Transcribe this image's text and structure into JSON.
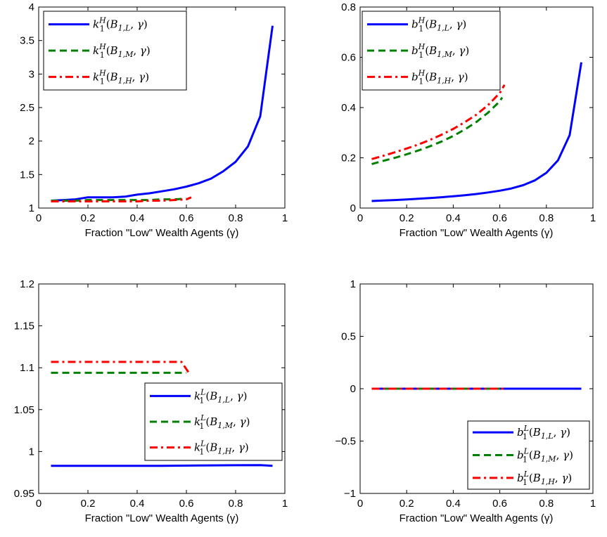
{
  "colors": {
    "blue": "#0000ff",
    "green": "#008000",
    "red": "#ff0000",
    "axis": "#000000",
    "background": "#ffffff"
  },
  "chart_data": [
    {
      "id": "panel-k1H",
      "type": "line",
      "xlabel": "Fraction \"Low\" Wealth Agents (γ)",
      "xlim": [
        0,
        1
      ],
      "ylim": [
        1,
        4
      ],
      "xticks": [
        0,
        0.2,
        0.4,
        0.6,
        0.8,
        1
      ],
      "yticks": [
        1,
        1.5,
        2,
        2.5,
        3,
        3.5,
        4
      ],
      "xtick_labels": [
        "0",
        "0.2",
        "0.4",
        "0.6",
        "0.8",
        "1"
      ],
      "ytick_labels": [
        "1",
        "1.5",
        "2",
        "2.5",
        "3",
        "3.5",
        "4"
      ],
      "grid": false,
      "legend": "top-left",
      "series": [
        {
          "name": "k_1^H(B_{1,L}, γ)",
          "label": {
            "base": "k",
            "sub": "1",
            "sup": "H",
            "arg": "B",
            "argsub": "1,L"
          },
          "style": "solid",
          "color": "#0000ff",
          "x": [
            0.05,
            0.1,
            0.15,
            0.2,
            0.25,
            0.3,
            0.35,
            0.4,
            0.45,
            0.5,
            0.55,
            0.6,
            0.65,
            0.7,
            0.75,
            0.8,
            0.85,
            0.9,
            0.95
          ],
          "y": [
            1.11,
            1.12,
            1.13,
            1.16,
            1.16,
            1.16,
            1.17,
            1.2,
            1.22,
            1.25,
            1.28,
            1.32,
            1.37,
            1.44,
            1.55,
            1.69,
            1.92,
            2.37,
            3.72
          ]
        },
        {
          "name": "k_1^H(B_{1,M}, γ)",
          "label": {
            "base": "k",
            "sub": "1",
            "sup": "H",
            "arg": "B",
            "argsub": "1,M"
          },
          "style": "dashed",
          "color": "#008000",
          "x": [
            0.05,
            0.1,
            0.15,
            0.2,
            0.25,
            0.3,
            0.35,
            0.4,
            0.45,
            0.5,
            0.55,
            0.6
          ],
          "y": [
            1.11,
            1.11,
            1.11,
            1.12,
            1.12,
            1.12,
            1.12,
            1.12,
            1.12,
            1.13,
            1.13,
            1.14
          ]
        },
        {
          "name": "k_1^H(B_{1,H}, γ)",
          "label": {
            "base": "k",
            "sub": "1",
            "sup": "H",
            "arg": "B",
            "argsub": "1,H"
          },
          "style": "dashdot",
          "color": "#ff0000",
          "x": [
            0.05,
            0.1,
            0.15,
            0.2,
            0.25,
            0.3,
            0.35,
            0.4,
            0.45,
            0.5,
            0.55,
            0.6,
            0.62
          ],
          "y": [
            1.1,
            1.1,
            1.1,
            1.1,
            1.1,
            1.1,
            1.1,
            1.1,
            1.11,
            1.11,
            1.12,
            1.13,
            1.16
          ]
        }
      ]
    },
    {
      "id": "panel-b1H",
      "type": "line",
      "xlabel": "Fraction \"Low\" Wealth Agents (γ)",
      "xlim": [
        0,
        1
      ],
      "ylim": [
        0,
        0.8
      ],
      "xticks": [
        0,
        0.2,
        0.4,
        0.6,
        0.8,
        1
      ],
      "yticks": [
        0,
        0.2,
        0.4,
        0.6,
        0.8
      ],
      "xtick_labels": [
        "0",
        "0.2",
        "0.4",
        "0.6",
        "0.8",
        "1"
      ],
      "ytick_labels": [
        "0",
        "0.2",
        "0.4",
        "0.6",
        "0.8"
      ],
      "grid": false,
      "legend": "top-left",
      "series": [
        {
          "name": "b_1^H(B_{1,L}, γ)",
          "label": {
            "base": "b",
            "sub": "1",
            "sup": "H",
            "arg": "B",
            "argsub": "1,L"
          },
          "style": "solid",
          "color": "#0000ff",
          "x": [
            0.05,
            0.1,
            0.15,
            0.2,
            0.25,
            0.3,
            0.35,
            0.4,
            0.45,
            0.5,
            0.55,
            0.6,
            0.65,
            0.7,
            0.75,
            0.8,
            0.85,
            0.9,
            0.95
          ],
          "y": [
            0.028,
            0.03,
            0.032,
            0.034,
            0.037,
            0.04,
            0.043,
            0.047,
            0.051,
            0.056,
            0.062,
            0.069,
            0.078,
            0.091,
            0.11,
            0.14,
            0.19,
            0.29,
            0.58
          ]
        },
        {
          "name": "b_1^H(B_{1,M}, γ)",
          "label": {
            "base": "b",
            "sub": "1",
            "sup": "H",
            "arg": "B",
            "argsub": "1,M"
          },
          "style": "dashed",
          "color": "#008000",
          "x": [
            0.05,
            0.1,
            0.15,
            0.2,
            0.25,
            0.3,
            0.35,
            0.4,
            0.45,
            0.5,
            0.55,
            0.6,
            0.61
          ],
          "y": [
            0.175,
            0.188,
            0.2,
            0.214,
            0.229,
            0.246,
            0.265,
            0.287,
            0.313,
            0.343,
            0.38,
            0.425,
            0.44
          ]
        },
        {
          "name": "b_1^H(B_{1,H}, γ)",
          "label": {
            "base": "b",
            "sub": "1",
            "sup": "H",
            "arg": "B",
            "argsub": "1,H"
          },
          "style": "dashdot",
          "color": "#ff0000",
          "x": [
            0.05,
            0.1,
            0.15,
            0.2,
            0.25,
            0.3,
            0.35,
            0.4,
            0.45,
            0.5,
            0.55,
            0.6,
            0.62
          ],
          "y": [
            0.195,
            0.208,
            0.222,
            0.237,
            0.253,
            0.271,
            0.292,
            0.315,
            0.342,
            0.372,
            0.41,
            0.458,
            0.49
          ]
        }
      ]
    },
    {
      "id": "panel-k1L",
      "type": "line",
      "xlabel": "Fraction \"Low\" Wealth Agents (γ)",
      "xlim": [
        0,
        1
      ],
      "ylim": [
        0.95,
        1.2
      ],
      "xticks": [
        0,
        0.2,
        0.4,
        0.6,
        0.8,
        1
      ],
      "yticks": [
        0.95,
        1,
        1.05,
        1.1,
        1.15,
        1.2
      ],
      "xtick_labels": [
        "0",
        "0.2",
        "0.4",
        "0.6",
        "0.8",
        "1"
      ],
      "ytick_labels": [
        "0.95",
        "1",
        "1.05",
        "1.1",
        "1.15",
        "1.2"
      ],
      "grid": false,
      "legend": "center-right",
      "series": [
        {
          "name": "k_1^L(B_{1,L}, γ)",
          "label": {
            "base": "k",
            "sub": "1",
            "sup": "L",
            "arg": "B",
            "argsub": "1,L"
          },
          "style": "solid",
          "color": "#0000ff",
          "x": [
            0.05,
            0.2,
            0.35,
            0.5,
            0.65,
            0.8,
            0.9,
            0.95
          ],
          "y": [
            0.983,
            0.983,
            0.983,
            0.983,
            0.9833,
            0.9836,
            0.9838,
            0.983
          ]
        },
        {
          "name": "k_1^L(B_{1,M}, γ)",
          "label": {
            "base": "k",
            "sub": "1",
            "sup": "L",
            "arg": "B",
            "argsub": "1,M"
          },
          "style": "dashed",
          "color": "#008000",
          "x": [
            0.05,
            0.2,
            0.4,
            0.58,
            0.6
          ],
          "y": [
            1.094,
            1.094,
            1.094,
            1.094,
            1.094
          ]
        },
        {
          "name": "k_1^L(B_{1,H}, γ)",
          "label": {
            "base": "k",
            "sub": "1",
            "sup": "L",
            "arg": "B",
            "argsub": "1,H"
          },
          "style": "dashdot",
          "color": "#ff0000",
          "x": [
            0.05,
            0.2,
            0.4,
            0.58,
            0.61
          ],
          "y": [
            1.107,
            1.107,
            1.107,
            1.107,
            1.094
          ]
        }
      ]
    },
    {
      "id": "panel-b1L",
      "type": "line",
      "xlabel": "Fraction \"Low\" Wealth Agents (γ)",
      "xlim": [
        0,
        1
      ],
      "ylim": [
        -1,
        1
      ],
      "xticks": [
        0,
        0.2,
        0.4,
        0.6,
        0.8,
        1
      ],
      "yticks": [
        -1,
        -0.5,
        0,
        0.5,
        1
      ],
      "xtick_labels": [
        "0",
        "0.2",
        "0.4",
        "0.6",
        "0.8",
        "1"
      ],
      "ytick_labels": [
        "−1",
        "−0.5",
        "0",
        "0.5",
        "1"
      ],
      "grid": false,
      "legend": "bottom-right",
      "series": [
        {
          "name": "b_1^L(B_{1,L}, γ)",
          "label": {
            "base": "b",
            "sub": "1",
            "sup": "L",
            "arg": "B",
            "argsub": "1,L"
          },
          "style": "solid",
          "color": "#0000ff",
          "x": [
            0.05,
            0.95
          ],
          "y": [
            0,
            0
          ]
        },
        {
          "name": "b_1^L(B_{1,M}, γ)",
          "label": {
            "base": "b",
            "sub": "1",
            "sup": "L",
            "arg": "B",
            "argsub": "1,M"
          },
          "style": "dashed",
          "color": "#008000",
          "x": [
            0.05,
            0.6
          ],
          "y": [
            0,
            0
          ]
        },
        {
          "name": "b_1^L(B_{1,H}, γ)",
          "label": {
            "base": "b",
            "sub": "1",
            "sup": "L",
            "arg": "B",
            "argsub": "1,H"
          },
          "style": "dashdot",
          "color": "#ff0000",
          "x": [
            0.05,
            0.62
          ],
          "y": [
            0,
            0
          ]
        }
      ]
    }
  ]
}
